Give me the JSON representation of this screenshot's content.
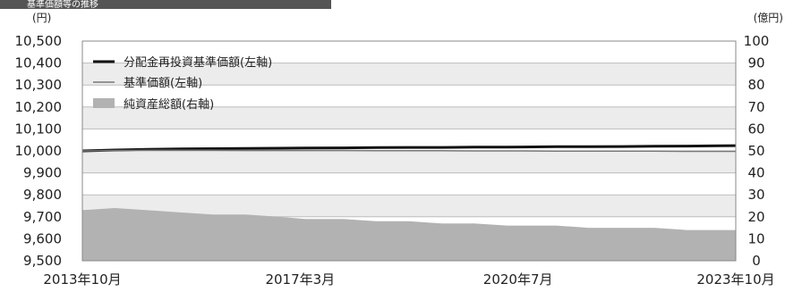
{
  "header": {
    "title": "基準価額等の推移"
  },
  "chart_data": {
    "type": "line",
    "x_tick_labels": [
      "2013年10月",
      "2017年3月",
      "2020年7月",
      "2023年10月"
    ],
    "x_range": [
      "2013-10",
      "2023-10"
    ],
    "y_left": {
      "unit": "(円)",
      "range": [
        9500,
        10500
      ],
      "ticks": [
        "9,500",
        "9,600",
        "9,700",
        "9,800",
        "9,900",
        "10,000",
        "10,100",
        "10,200",
        "10,300",
        "10,400",
        "10,500"
      ]
    },
    "y_right": {
      "unit": "(億円)",
      "range": [
        0,
        100
      ],
      "ticks": [
        "0",
        "10",
        "20",
        "30",
        "40",
        "50",
        "60",
        "70",
        "80",
        "90",
        "100"
      ]
    },
    "grid": true,
    "legend": {
      "placement": "top-left"
    },
    "x": [
      "2013-10",
      "2014-04",
      "2014-10",
      "2015-04",
      "2015-10",
      "2016-04",
      "2016-10",
      "2017-03",
      "2017-10",
      "2018-04",
      "2018-10",
      "2019-04",
      "2019-10",
      "2020-04",
      "2020-07",
      "2021-01",
      "2021-07",
      "2022-01",
      "2022-07",
      "2023-01",
      "2023-07",
      "2023-10"
    ],
    "series": [
      {
        "name": "分配金再投資基準価額(左軸)",
        "axis": "left",
        "style": "line-thick",
        "color": "#111111",
        "values": [
          10000,
          10004,
          10007,
          10009,
          10010,
          10011,
          10012,
          10013,
          10014,
          10015,
          10016,
          10016,
          10017,
          10017,
          10018,
          10019,
          10019,
          10020,
          10021,
          10022,
          10023,
          10024
        ]
      },
      {
        "name": "基準価額(左軸)",
        "axis": "left",
        "style": "line-thin",
        "color": "#777777",
        "values": [
          10000,
          10002,
          10003,
          10003,
          10003,
          10002,
          10002,
          10002,
          10002,
          10001,
          10001,
          10001,
          10000,
          10000,
          10000,
          9999,
          9999,
          9999,
          9999,
          9998,
          9998,
          9998
        ]
      },
      {
        "name": "純資産総額(右軸)",
        "axis": "right",
        "style": "area",
        "color": "#b2b2b2",
        "values": [
          23,
          24,
          23,
          22,
          21,
          21,
          20,
          19,
          19,
          18,
          18,
          17,
          17,
          16,
          16,
          16,
          15,
          15,
          15,
          14,
          14,
          14
        ]
      }
    ]
  }
}
